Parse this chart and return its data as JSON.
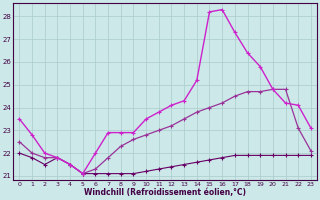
{
  "bg_color": "#cce8e8",
  "grid_color": "#aacccc",
  "xlabel": "Windchill (Refroidissement éolien,°C)",
  "ylim": [
    20.8,
    28.6
  ],
  "xlim": [
    -0.5,
    23.5
  ],
  "yticks": [
    21,
    22,
    23,
    24,
    25,
    26,
    27,
    28
  ],
  "xticks": [
    0,
    1,
    2,
    3,
    4,
    5,
    6,
    7,
    8,
    9,
    10,
    11,
    12,
    13,
    14,
    15,
    16,
    17,
    18,
    19,
    20,
    21,
    22,
    23
  ],
  "line1_x": [
    0,
    1,
    2,
    3,
    4,
    5,
    6,
    7,
    8,
    9,
    10,
    11,
    12,
    13,
    14,
    15,
    16,
    17,
    18,
    19,
    20,
    21,
    22,
    23
  ],
  "line1_y": [
    23.5,
    22.8,
    22.0,
    21.8,
    21.5,
    21.1,
    22.0,
    22.9,
    22.9,
    22.9,
    23.5,
    23.8,
    24.1,
    24.3,
    25.2,
    28.2,
    28.3,
    27.3,
    26.4,
    25.8,
    24.8,
    24.2,
    24.1,
    23.1
  ],
  "line2_x": [
    0,
    1,
    2,
    3,
    4,
    5,
    6,
    7,
    8,
    9,
    10,
    11,
    12,
    13,
    14,
    15,
    16,
    17,
    18,
    19,
    20,
    21,
    22,
    23
  ],
  "line2_y": [
    22.5,
    22.0,
    21.8,
    21.8,
    21.5,
    21.1,
    21.3,
    21.8,
    22.3,
    22.6,
    22.8,
    23.0,
    23.2,
    23.5,
    23.8,
    24.0,
    24.2,
    24.5,
    24.7,
    24.7,
    24.8,
    24.8,
    23.1,
    22.1
  ],
  "line3_x": [
    0,
    1,
    2,
    3,
    4,
    5,
    6,
    7,
    8,
    9,
    10,
    11,
    12,
    13,
    14,
    15,
    16,
    17,
    18,
    19,
    20,
    21,
    22,
    23
  ],
  "line3_y": [
    22.0,
    21.8,
    21.5,
    21.8,
    21.5,
    21.1,
    21.1,
    21.1,
    21.1,
    21.1,
    21.2,
    21.3,
    21.4,
    21.5,
    21.6,
    21.7,
    21.8,
    21.9,
    21.9,
    21.9,
    21.9,
    21.9,
    21.9,
    21.9
  ],
  "line1_color": "#cc22cc",
  "line2_color": "#993399",
  "line3_color": "#660066"
}
